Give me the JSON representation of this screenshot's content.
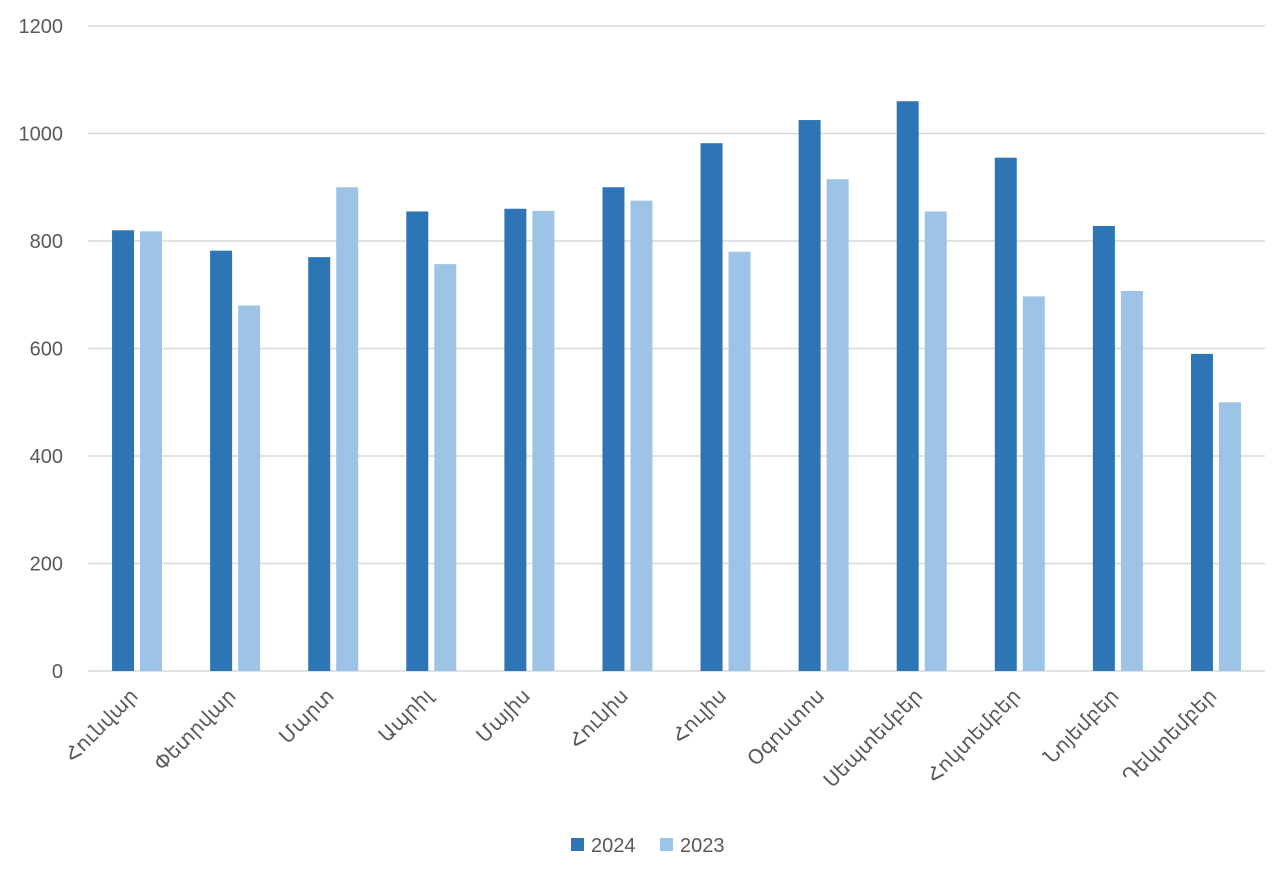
{
  "chart_data": {
    "type": "bar",
    "categories": [
      "Հունվար",
      "Փետրվար",
      "Մարտ",
      "Ապրիլ",
      "Մայիս",
      "Հունիս",
      "Հուլիս",
      "Օգոստոս",
      "Սեպտեմբեր",
      "Հոկտեմբեր",
      "Նոյեմբեր",
      "Դեկտեմբեր"
    ],
    "series": [
      {
        "name": "2024",
        "color": "#2e75b6",
        "values": [
          820,
          782,
          770,
          855,
          860,
          900,
          982,
          1025,
          1060,
          955,
          828,
          590
        ]
      },
      {
        "name": "2023",
        "color": "#9dc3e6",
        "values": [
          818,
          680,
          900,
          757,
          856,
          875,
          780,
          915,
          855,
          697,
          707,
          500
        ]
      }
    ],
    "ylim": [
      0,
      1200
    ],
    "yticks": [
      0,
      200,
      400,
      600,
      800,
      1000,
      1200
    ],
    "grid": true,
    "legend": "bottom-center"
  },
  "colors": {
    "grid": "#d9d9d9",
    "axis": "#d9d9d9",
    "tick_text": "#595959"
  }
}
